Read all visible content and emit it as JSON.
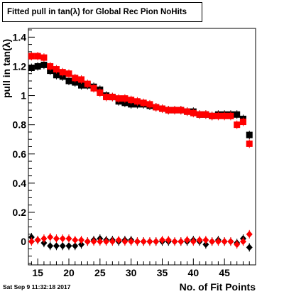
{
  "chart_data": {
    "type": "scatter",
    "title": "Fitted pull in tan(λ) for Global Rec Pion NoHits",
    "xlabel": "No. of Fit Points",
    "ylabel": "pull in tan(λ)",
    "xlim": [
      13.5,
      50
    ],
    "ylim": [
      -0.16,
      1.46
    ],
    "xticks": [
      15,
      20,
      25,
      30,
      35,
      40,
      45
    ],
    "yticks": [
      0,
      0.2,
      0.4,
      0.6,
      0.8,
      1,
      1.2,
      1.4
    ],
    "ytick_labels": [
      "0",
      "0.2",
      "0.4",
      "0.6",
      "0.8",
      "1",
      "1.2",
      "1.4"
    ],
    "grid": false,
    "series": [
      {
        "name": "",
        "marker": "square",
        "color": "#000000",
        "x": [
          14,
          15,
          16,
          17,
          18,
          19,
          20,
          21,
          22,
          23,
          24,
          25,
          26,
          27,
          28,
          29,
          30,
          31,
          32,
          33,
          34,
          35,
          36,
          37,
          38,
          39,
          40,
          41,
          42,
          43,
          44,
          45,
          46,
          47,
          48,
          49
        ],
        "y": [
          1.19,
          1.2,
          1.21,
          1.17,
          1.14,
          1.13,
          1.1,
          1.09,
          1.07,
          1.07,
          1.06,
          1.04,
          1.0,
          0.99,
          0.96,
          0.95,
          0.94,
          0.94,
          0.94,
          0.93,
          0.92,
          0.91,
          0.9,
          0.9,
          0.9,
          0.89,
          0.89,
          0.87,
          0.87,
          0.86,
          0.87,
          0.87,
          0.87,
          0.87,
          0.84,
          0.73
        ]
      },
      {
        "name": "",
        "marker": "square",
        "color": "#ff0000",
        "x": [
          14,
          15,
          16,
          17,
          18,
          19,
          20,
          21,
          22,
          23,
          24,
          25,
          26,
          27,
          28,
          29,
          30,
          31,
          32,
          33,
          34,
          35,
          36,
          37,
          38,
          39,
          40,
          41,
          42,
          43,
          44,
          45,
          46,
          47,
          48,
          49
        ],
        "y": [
          1.27,
          1.27,
          1.26,
          1.2,
          1.18,
          1.16,
          1.15,
          1.12,
          1.11,
          1.08,
          1.05,
          1.02,
          0.99,
          0.99,
          0.98,
          0.98,
          0.97,
          0.96,
          0.95,
          0.94,
          0.92,
          0.91,
          0.9,
          0.9,
          0.9,
          0.89,
          0.88,
          0.87,
          0.87,
          0.86,
          0.86,
          0.86,
          0.86,
          0.8,
          0.82,
          0.67
        ]
      },
      {
        "name": "",
        "marker": "diamond",
        "color": "#000000",
        "x": [
          14,
          15,
          16,
          17,
          18,
          19,
          20,
          21,
          22,
          23,
          24,
          25,
          26,
          27,
          28,
          29,
          30,
          31,
          32,
          33,
          34,
          35,
          36,
          37,
          38,
          39,
          40,
          41,
          42,
          43,
          44,
          45,
          46,
          47,
          48,
          49
        ],
        "y": [
          0.03,
          0.01,
          -0.01,
          -0.03,
          -0.03,
          -0.03,
          -0.03,
          -0.03,
          -0.02,
          0.0,
          0.01,
          0.02,
          0.01,
          0.01,
          0.0,
          0.01,
          0.01,
          0.0,
          0.0,
          0.0,
          0.0,
          0.0,
          0.0,
          0.0,
          0.0,
          0.0,
          0.01,
          0.0,
          -0.02,
          0.0,
          0.01,
          0.0,
          0.0,
          -0.01,
          0.02,
          -0.04
        ]
      },
      {
        "name": "",
        "marker": "diamond",
        "color": "#ff0000",
        "x": [
          14,
          15,
          16,
          17,
          18,
          19,
          20,
          21,
          22,
          23,
          24,
          25,
          26,
          27,
          28,
          29,
          30,
          31,
          32,
          33,
          34,
          35,
          36,
          37,
          38,
          39,
          40,
          41,
          42,
          43,
          44,
          45,
          46,
          47,
          48,
          49
        ],
        "y": [
          0.0,
          0.01,
          0.02,
          0.03,
          0.02,
          0.02,
          0.02,
          0.01,
          0.01,
          0.0,
          0.0,
          0.0,
          0.0,
          0.0,
          0.01,
          0.0,
          0.0,
          0.0,
          0.0,
          0.0,
          0.0,
          0.01,
          0.01,
          0.0,
          0.0,
          0.01,
          0.0,
          0.01,
          0.01,
          0.0,
          0.0,
          0.0,
          0.0,
          -0.02,
          0.0,
          0.05
        ]
      }
    ]
  },
  "timestamp": "Sat Sep  9 11:32:18 2017"
}
